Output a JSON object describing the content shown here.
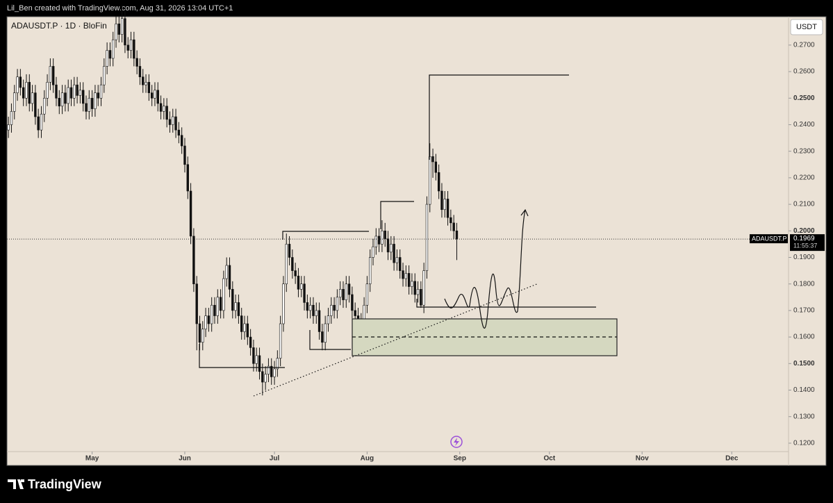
{
  "header": {
    "credit": "Lil_Ben created with TradingView.com, Aug 31, 2026 13:04 UTC+1"
  },
  "footer": {
    "brand": "TradingView"
  },
  "chart_data": {
    "type": "candlestick",
    "title": "ADAUSDT.P · 1D · BloFin",
    "currency": "USDT",
    "price_tag": "ADAUSDT.P",
    "last_price": 0.1969,
    "countdown": "11:55:37",
    "up_color": "#ffffff",
    "down_color": "#111111",
    "wick_color": "#111111",
    "xlim": [
      -0.5,
      261
    ],
    "xticks": [
      {
        "value": 28,
        "label": "May"
      },
      {
        "value": 59,
        "label": "Jun"
      },
      {
        "value": 89,
        "label": "Jul"
      },
      {
        "value": 120,
        "label": "Aug"
      },
      {
        "value": 151,
        "label": "Sep"
      },
      {
        "value": 181,
        "label": "Oct"
      },
      {
        "value": 212,
        "label": "Nov"
      },
      {
        "value": 242,
        "label": "Dec"
      }
    ],
    "ylim": [
      0.1116,
      0.2807
    ],
    "yticks": [
      {
        "value": 0.12,
        "label": "0.1200"
      },
      {
        "value": 0.13,
        "label": "0.1300"
      },
      {
        "value": 0.14,
        "label": "0.1400"
      },
      {
        "value": 0.15,
        "label": "0.1500"
      },
      {
        "value": 0.16,
        "label": "0.1600"
      },
      {
        "value": 0.17,
        "label": "0.1700"
      },
      {
        "value": 0.18,
        "label": "0.1800"
      },
      {
        "value": 0.19,
        "label": "0.1900"
      },
      {
        "value": 0.2,
        "label": "0.2000"
      },
      {
        "value": 0.21,
        "label": "0.2100"
      },
      {
        "value": 0.22,
        "label": "0.2200"
      },
      {
        "value": 0.23,
        "label": "0.2300"
      },
      {
        "value": 0.24,
        "label": "0.2400"
      },
      {
        "value": 0.25,
        "label": "0.2500"
      },
      {
        "value": 0.26,
        "label": "0.2600"
      },
      {
        "value": 0.27,
        "label": "0.2700"
      }
    ],
    "ohlc": [
      [
        0.238,
        0.243,
        0.235,
        0.24
      ],
      [
        0.24,
        0.248,
        0.237,
        0.245
      ],
      [
        0.245,
        0.255,
        0.242,
        0.252
      ],
      [
        0.252,
        0.261,
        0.249,
        0.258
      ],
      [
        0.258,
        0.261,
        0.251,
        0.254
      ],
      [
        0.254,
        0.257,
        0.247,
        0.25
      ],
      [
        0.25,
        0.259,
        0.247,
        0.256
      ],
      [
        0.256,
        0.259,
        0.245,
        0.248
      ],
      [
        0.248,
        0.255,
        0.245,
        0.252
      ],
      [
        0.252,
        0.255,
        0.24,
        0.243
      ],
      [
        0.243,
        0.246,
        0.235,
        0.238
      ],
      [
        0.238,
        0.247,
        0.235,
        0.244
      ],
      [
        0.244,
        0.253,
        0.241,
        0.25
      ],
      [
        0.25,
        0.259,
        0.247,
        0.256
      ],
      [
        0.256,
        0.265,
        0.253,
        0.262
      ],
      [
        0.262,
        0.265,
        0.252,
        0.255
      ],
      [
        0.255,
        0.258,
        0.247,
        0.25
      ],
      [
        0.25,
        0.253,
        0.244,
        0.247
      ],
      [
        0.247,
        0.255,
        0.244,
        0.252
      ],
      [
        0.252,
        0.255,
        0.245,
        0.248
      ],
      [
        0.248,
        0.257,
        0.245,
        0.254
      ],
      [
        0.254,
        0.257,
        0.247,
        0.25
      ],
      [
        0.25,
        0.258,
        0.247,
        0.255
      ],
      [
        0.255,
        0.258,
        0.248,
        0.251
      ],
      [
        0.251,
        0.256,
        0.248,
        0.253
      ],
      [
        0.253,
        0.256,
        0.245,
        0.248
      ],
      [
        0.248,
        0.251,
        0.242,
        0.245
      ],
      [
        0.245,
        0.253,
        0.242,
        0.25
      ],
      [
        0.25,
        0.253,
        0.243,
        0.246
      ],
      [
        0.246,
        0.255,
        0.243,
        0.252
      ],
      [
        0.252,
        0.255,
        0.247,
        0.25
      ],
      [
        0.25,
        0.258,
        0.247,
        0.255
      ],
      [
        0.255,
        0.265,
        0.252,
        0.262
      ],
      [
        0.262,
        0.271,
        0.259,
        0.268
      ],
      [
        0.268,
        0.271,
        0.262,
        0.265
      ],
      [
        0.265,
        0.275,
        0.262,
        0.272
      ],
      [
        0.272,
        0.281,
        0.269,
        0.278
      ],
      [
        0.278,
        0.281,
        0.271,
        0.274
      ],
      [
        0.274,
        0.285,
        0.271,
        0.28
      ],
      [
        0.28,
        0.283,
        0.267,
        0.27
      ],
      [
        0.27,
        0.273,
        0.265,
        0.268
      ],
      [
        0.268,
        0.275,
        0.265,
        0.272
      ],
      [
        0.272,
        0.275,
        0.262,
        0.265
      ],
      [
        0.265,
        0.268,
        0.259,
        0.262
      ],
      [
        0.262,
        0.265,
        0.255,
        0.258
      ],
      [
        0.258,
        0.261,
        0.252,
        0.255
      ],
      [
        0.255,
        0.259,
        0.252,
        0.256
      ],
      [
        0.256,
        0.259,
        0.249,
        0.252
      ],
      [
        0.252,
        0.255,
        0.247,
        0.25
      ],
      [
        0.25,
        0.256,
        0.247,
        0.253
      ],
      [
        0.253,
        0.256,
        0.245,
        0.248
      ],
      [
        0.248,
        0.251,
        0.242,
        0.245
      ],
      [
        0.245,
        0.25,
        0.242,
        0.247
      ],
      [
        0.247,
        0.25,
        0.239,
        0.242
      ],
      [
        0.242,
        0.245,
        0.237,
        0.24
      ],
      [
        0.24,
        0.246,
        0.237,
        0.243
      ],
      [
        0.243,
        0.246,
        0.235,
        0.238
      ],
      [
        0.238,
        0.241,
        0.233,
        0.236
      ],
      [
        0.236,
        0.239,
        0.229,
        0.232
      ],
      [
        0.232,
        0.235,
        0.222,
        0.225
      ],
      [
        0.225,
        0.228,
        0.212,
        0.215
      ],
      [
        0.215,
        0.218,
        0.195,
        0.198
      ],
      [
        0.198,
        0.201,
        0.177,
        0.18
      ],
      [
        0.18,
        0.183,
        0.155,
        0.165
      ],
      [
        0.165,
        0.168,
        0.155,
        0.158
      ],
      [
        0.158,
        0.166,
        0.155,
        0.163
      ],
      [
        0.163,
        0.171,
        0.16,
        0.168
      ],
      [
        0.168,
        0.171,
        0.162,
        0.165
      ],
      [
        0.165,
        0.175,
        0.162,
        0.172
      ],
      [
        0.172,
        0.175,
        0.165,
        0.168
      ],
      [
        0.168,
        0.178,
        0.165,
        0.175
      ],
      [
        0.175,
        0.178,
        0.167,
        0.17
      ],
      [
        0.17,
        0.185,
        0.167,
        0.182
      ],
      [
        0.182,
        0.19,
        0.179,
        0.187
      ],
      [
        0.187,
        0.19,
        0.175,
        0.178
      ],
      [
        0.178,
        0.181,
        0.167,
        0.17
      ],
      [
        0.17,
        0.176,
        0.167,
        0.173
      ],
      [
        0.173,
        0.176,
        0.165,
        0.168
      ],
      [
        0.168,
        0.171,
        0.159,
        0.162
      ],
      [
        0.162,
        0.168,
        0.159,
        0.165
      ],
      [
        0.165,
        0.168,
        0.157,
        0.16
      ],
      [
        0.16,
        0.163,
        0.153,
        0.156
      ],
      [
        0.156,
        0.159,
        0.147,
        0.15
      ],
      [
        0.15,
        0.156,
        0.147,
        0.153
      ],
      [
        0.153,
        0.156,
        0.144,
        0.147
      ],
      [
        0.147,
        0.15,
        0.138,
        0.143
      ],
      [
        0.143,
        0.149,
        0.14,
        0.146
      ],
      [
        0.146,
        0.152,
        0.143,
        0.149
      ],
      [
        0.149,
        0.152,
        0.142,
        0.145
      ],
      [
        0.145,
        0.151,
        0.142,
        0.148
      ],
      [
        0.148,
        0.155,
        0.145,
        0.152
      ],
      [
        0.152,
        0.168,
        0.149,
        0.165
      ],
      [
        0.165,
        0.183,
        0.162,
        0.18
      ],
      [
        0.18,
        0.199,
        0.177,
        0.195
      ],
      [
        0.195,
        0.198,
        0.187,
        0.19
      ],
      [
        0.19,
        0.193,
        0.182,
        0.185
      ],
      [
        0.185,
        0.188,
        0.18,
        0.183
      ],
      [
        0.183,
        0.186,
        0.175,
        0.178
      ],
      [
        0.178,
        0.183,
        0.175,
        0.18
      ],
      [
        0.18,
        0.183,
        0.17,
        0.173
      ],
      [
        0.173,
        0.176,
        0.167,
        0.17
      ],
      [
        0.17,
        0.175,
        0.167,
        0.172
      ],
      [
        0.172,
        0.175,
        0.165,
        0.168
      ],
      [
        0.168,
        0.173,
        0.165,
        0.17
      ],
      [
        0.17,
        0.173,
        0.159,
        0.162
      ],
      [
        0.162,
        0.165,
        0.155,
        0.158
      ],
      [
        0.158,
        0.168,
        0.155,
        0.165
      ],
      [
        0.165,
        0.171,
        0.162,
        0.168
      ],
      [
        0.168,
        0.175,
        0.165,
        0.172
      ],
      [
        0.172,
        0.175,
        0.167,
        0.17
      ],
      [
        0.17,
        0.178,
        0.167,
        0.175
      ],
      [
        0.175,
        0.181,
        0.172,
        0.178
      ],
      [
        0.178,
        0.181,
        0.171,
        0.174
      ],
      [
        0.174,
        0.183,
        0.171,
        0.18
      ],
      [
        0.18,
        0.183,
        0.173,
        0.176
      ],
      [
        0.176,
        0.179,
        0.167,
        0.17
      ],
      [
        0.17,
        0.173,
        0.165,
        0.168
      ],
      [
        0.168,
        0.171,
        0.155,
        0.162
      ],
      [
        0.162,
        0.169,
        0.159,
        0.166
      ],
      [
        0.166,
        0.175,
        0.163,
        0.172
      ],
      [
        0.172,
        0.183,
        0.169,
        0.18
      ],
      [
        0.18,
        0.193,
        0.177,
        0.19
      ],
      [
        0.19,
        0.197,
        0.187,
        0.194
      ],
      [
        0.194,
        0.201,
        0.191,
        0.198
      ],
      [
        0.198,
        0.201,
        0.192,
        0.195
      ],
      [
        0.195,
        0.204,
        0.192,
        0.2
      ],
      [
        0.2,
        0.203,
        0.194,
        0.197
      ],
      [
        0.197,
        0.2,
        0.189,
        0.192
      ],
      [
        0.192,
        0.198,
        0.189,
        0.195
      ],
      [
        0.195,
        0.198,
        0.185,
        0.188
      ],
      [
        0.188,
        0.193,
        0.185,
        0.19
      ],
      [
        0.19,
        0.193,
        0.182,
        0.185
      ],
      [
        0.185,
        0.188,
        0.179,
        0.182
      ],
      [
        0.182,
        0.187,
        0.179,
        0.184
      ],
      [
        0.184,
        0.187,
        0.176,
        0.179
      ],
      [
        0.179,
        0.184,
        0.176,
        0.181
      ],
      [
        0.181,
        0.184,
        0.173,
        0.176
      ],
      [
        0.176,
        0.181,
        0.173,
        0.178
      ],
      [
        0.178,
        0.181,
        0.171,
        0.172
      ],
      [
        0.172,
        0.188,
        0.169,
        0.185
      ],
      [
        0.185,
        0.213,
        0.182,
        0.21
      ],
      [
        0.21,
        0.233,
        0.207,
        0.228
      ],
      [
        0.228,
        0.231,
        0.22,
        0.226
      ],
      [
        0.226,
        0.229,
        0.219,
        0.222
      ],
      [
        0.222,
        0.225,
        0.212,
        0.215
      ],
      [
        0.215,
        0.218,
        0.205,
        0.208
      ],
      [
        0.208,
        0.215,
        0.205,
        0.212
      ],
      [
        0.212,
        0.215,
        0.202,
        0.205
      ],
      [
        0.205,
        0.208,
        0.2,
        0.203
      ],
      [
        0.203,
        0.206,
        0.197,
        0.2
      ],
      [
        0.2,
        0.203,
        0.189,
        0.1969
      ]
    ]
  }
}
